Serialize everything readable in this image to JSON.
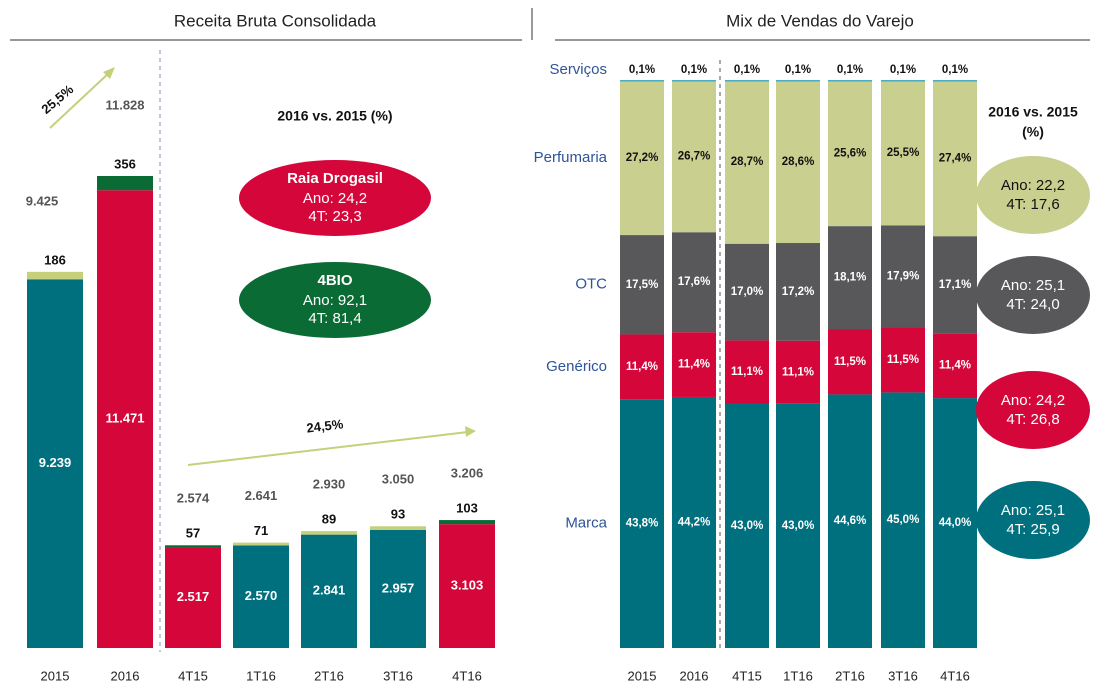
{
  "chart_data": [
    {
      "type": "bar",
      "title": "Receita Bruta Consolidada",
      "categories": [
        "2015",
        "2016",
        "4T15",
        "1T16",
        "2T16",
        "3T16",
        "4T16"
      ],
      "series": [
        {
          "values": [
            9239,
            11471,
            2517,
            2570,
            2841,
            2957,
            3103
          ],
          "value_labels": [
            "9.239",
            "11.471",
            "2.517",
            "2.570",
            "2.841",
            "2.957",
            "3.103"
          ],
          "colors": [
            "#00707f",
            "#d4063a",
            "#d4063a",
            "#00707f",
            "#00707f",
            "#00707f",
            "#d4063a"
          ]
        },
        {
          "values": [
            186,
            356,
            57,
            71,
            89,
            93,
            103
          ],
          "colors": [
            "#c6d07a",
            "#0a6b35",
            "#0a6b35",
            "#c6d07a",
            "#c6d07a",
            "#c6d07a",
            "#0a6b35"
          ]
        }
      ],
      "totals": [
        9425,
        11828,
        2574,
        2641,
        2930,
        3050,
        3206
      ],
      "total_labels": [
        "9.425",
        "11.828",
        "2.574",
        "2.641",
        "2.930",
        "3.050",
        "3.206"
      ],
      "annotations": [
        "25,5%",
        "24,5%"
      ],
      "comparison": {
        "title": "2016 vs. 2015 (%)",
        "items": [
          {
            "name": "Raia Drogasil",
            "color": "#d4063a",
            "lines": [
              "Ano: 24,2",
              "4T: 23,3"
            ]
          },
          {
            "name": "4BIO",
            "color": "#0a6b35",
            "lines": [
              "Ano: 92,1",
              "4T: 81,4"
            ]
          }
        ]
      }
    },
    {
      "type": "bar",
      "title": "Mix de Vendas do Varejo",
      "categories": [
        "2015",
        "2016",
        "4T15",
        "1T16",
        "2T16",
        "3T16",
        "4T16"
      ],
      "series": [
        {
          "name": "Marca",
          "color": "#00707f",
          "values": [
            43.8,
            44.2,
            43.0,
            43.0,
            44.6,
            45.0,
            44.0
          ],
          "value_labels": [
            "43,8%",
            "44,2%",
            "43,0%",
            "43,0%",
            "44,6%",
            "45,0%",
            "44,0%"
          ],
          "annotation": [
            "Ano: 25,1",
            "4T: 25,9"
          ]
        },
        {
          "name": "Genérico",
          "color": "#d4063a",
          "values": [
            11.4,
            11.4,
            11.1,
            11.1,
            11.5,
            11.5,
            11.4
          ],
          "value_labels": [
            "11,4%",
            "11,4%",
            "11,1%",
            "11,1%",
            "11,5%",
            "11,5%",
            "11,4%"
          ],
          "annotation": [
            "Ano: 24,2",
            "4T: 26,8"
          ]
        },
        {
          "name": "OTC",
          "color": "#58585a",
          "values": [
            17.5,
            17.6,
            17.0,
            17.2,
            18.1,
            17.9,
            17.1
          ],
          "value_labels": [
            "17,5%",
            "17,6%",
            "17,0%",
            "17,2%",
            "18,1%",
            "17,9%",
            "17,1%"
          ],
          "annotation": [
            "Ano: 25,1",
            "4T: 24,0"
          ]
        },
        {
          "name": "Perfumaria",
          "color": "#c9cf8f",
          "values": [
            27.2,
            26.7,
            28.7,
            28.6,
            25.6,
            25.5,
            27.4
          ],
          "value_labels": [
            "27,2%",
            "26,7%",
            "28,7%",
            "28,6%",
            "25,6%",
            "25,5%",
            "27,4%"
          ],
          "annotation": [
            "Ano: 22,2",
            "4T: 17,6"
          ]
        },
        {
          "name": "Serviços",
          "color": "#4bacc6",
          "values": [
            0.1,
            0.1,
            0.1,
            0.1,
            0.1,
            0.1,
            0.1
          ],
          "value_labels": [
            "0,1%",
            "0,1%",
            "0,1%",
            "0,1%",
            "0,1%",
            "0,1%",
            "0,1%"
          ]
        }
      ],
      "comparison_title": [
        "2016 vs. 2015",
        "(%)"
      ]
    }
  ]
}
